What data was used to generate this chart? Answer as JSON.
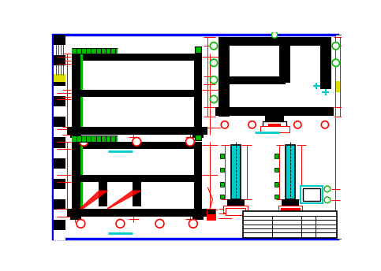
{
  "bg_color": "#ffffff",
  "black": "#000000",
  "red": "#ff0000",
  "green": "#00bb00",
  "cyan": "#00cccc",
  "blue": "#0000ff",
  "yellow": "#dddd00",
  "fig_bg": "#ffffff"
}
